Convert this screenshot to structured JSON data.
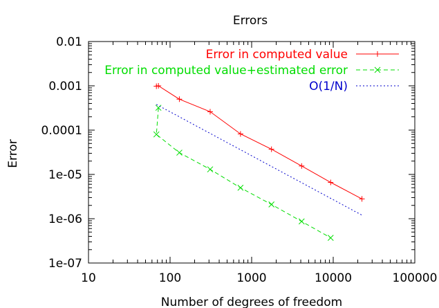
{
  "chart_data": {
    "type": "line",
    "title": "Errors",
    "xlabel": "Number of degrees of freedom",
    "ylabel": "Error",
    "x_scale": "log",
    "y_scale": "log",
    "xlim": [
      10,
      100000
    ],
    "ylim": [
      1e-07,
      0.01
    ],
    "grid": false,
    "legend_position": "top-right",
    "x_ticks": [
      "10",
      "100",
      "1000",
      "10000",
      "100000"
    ],
    "y_ticks": [
      "1e-07",
      "1e-06",
      "1e-05",
      "0.0001",
      "0.001",
      "0.01"
    ],
    "series": [
      {
        "name": "Error in computed value",
        "color": "#ff0000",
        "dash": "solid",
        "marker": "plus",
        "x": [
          68,
          72,
          130,
          310,
          730,
          1750,
          4100,
          9300,
          22500
        ],
        "y": [
          0.00098,
          0.001,
          0.0005,
          0.00026,
          8.2e-05,
          3.7e-05,
          1.55e-05,
          6.6e-06,
          2.8e-06
        ]
      },
      {
        "name": "Error in computed value+estimated error",
        "color": "#00dd00",
        "dash": "dashed",
        "marker": "cross",
        "x": [
          72,
          68,
          130,
          310,
          730,
          1750,
          4100,
          9300
        ],
        "y": [
          0.00032,
          8e-05,
          3.1e-05,
          1.3e-05,
          5e-06,
          2.1e-06,
          8.7e-07,
          3.7e-07
        ]
      },
      {
        "name": "O(1/N)",
        "color": "#0000cc",
        "dash": "dotted",
        "marker": "none",
        "x": [
          68,
          22500
        ],
        "y": [
          0.00038,
          1.2e-06
        ]
      }
    ]
  }
}
